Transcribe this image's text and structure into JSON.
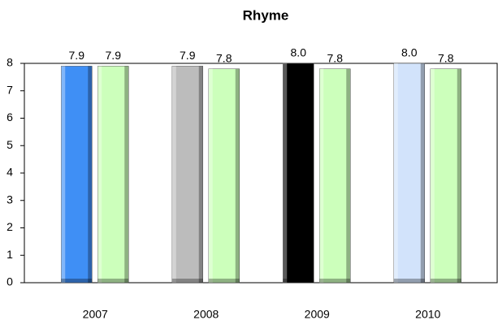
{
  "chart_data": {
    "type": "bar",
    "title": "Rhyme",
    "categories": [
      "2007",
      "2008",
      "2009",
      "2010"
    ],
    "series": [
      {
        "colors": [
          "#3f8ff5",
          "#bcbcbc",
          "#000000",
          "#d2e3fb"
        ],
        "values": [
          7.9,
          7.9,
          8.0,
          8.0
        ],
        "value_labels": [
          "7.9",
          "7.9",
          "8.0",
          "8.0"
        ]
      },
      {
        "color": "#ccffbb",
        "values": [
          7.9,
          7.8,
          7.8,
          7.8
        ],
        "value_labels": [
          "7.9",
          "7.8",
          "7.8",
          "7.8"
        ]
      }
    ],
    "ylim": [
      0,
      8
    ],
    "yticks": [
      0,
      1,
      2,
      3,
      4,
      5,
      6,
      7,
      8
    ],
    "grid": false
  }
}
